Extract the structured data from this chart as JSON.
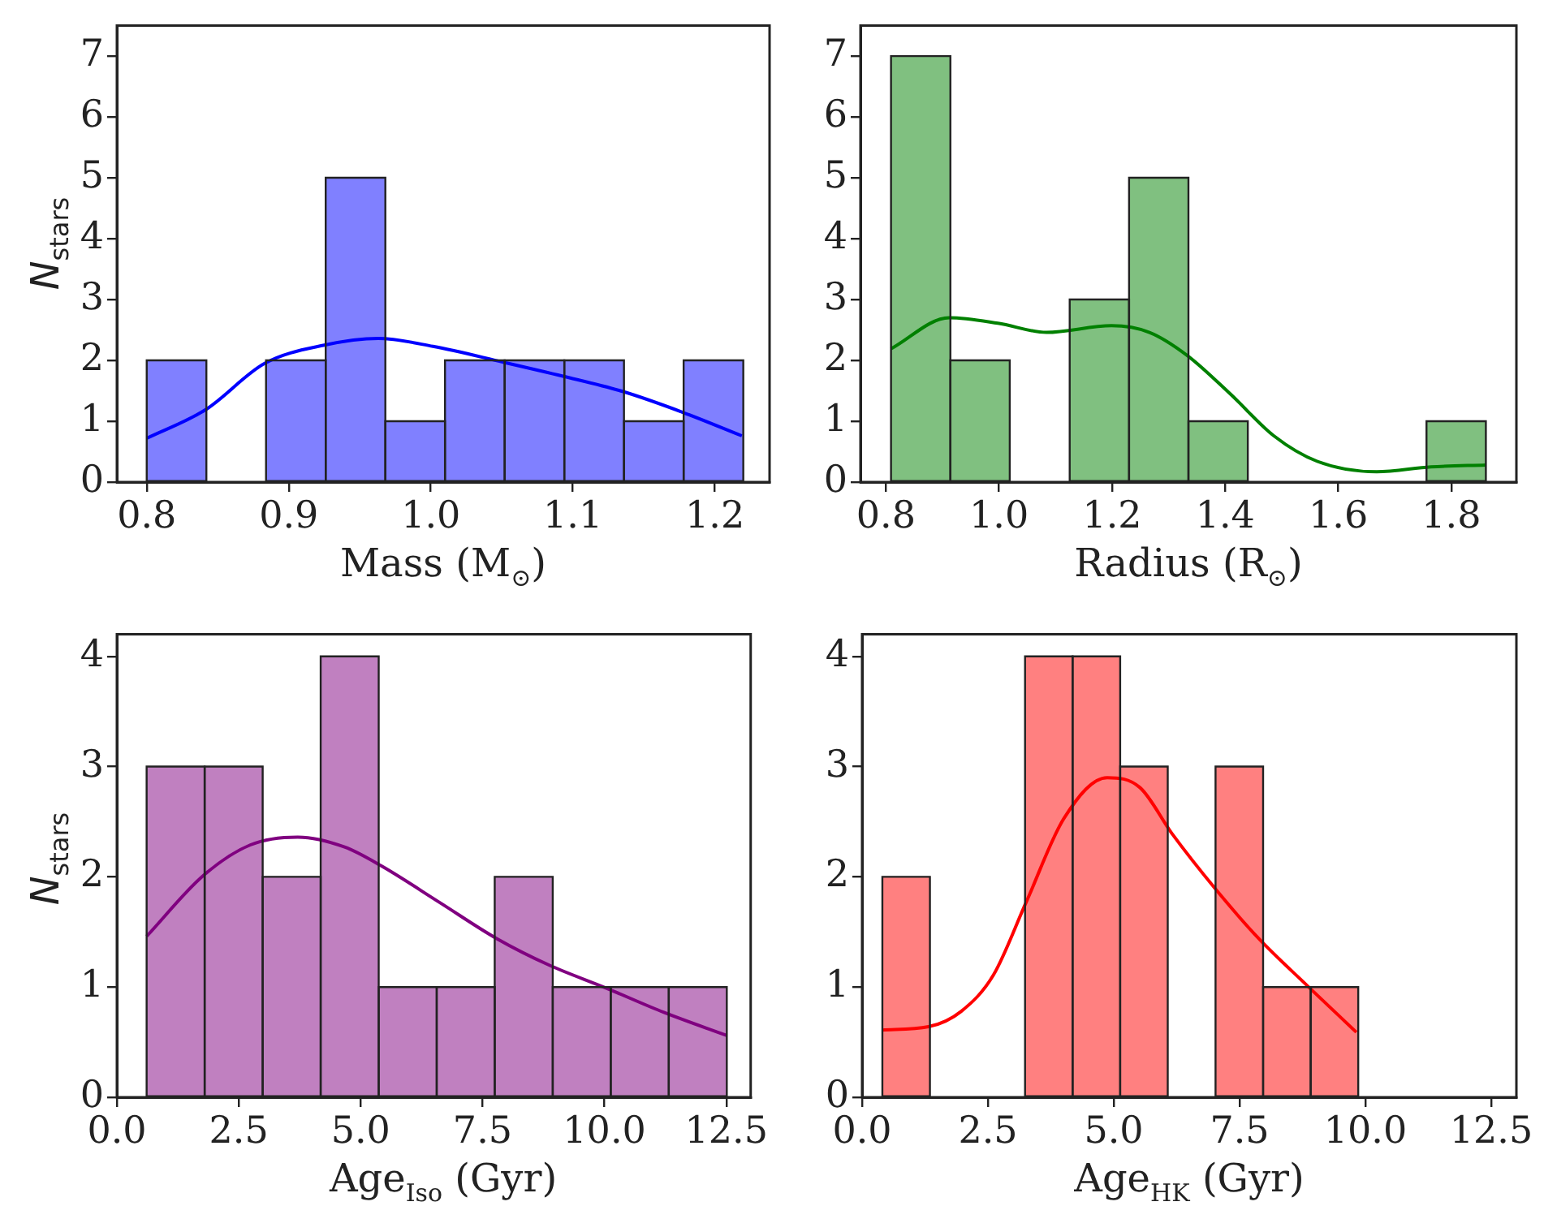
{
  "chart_data": [
    {
      "type": "histogram",
      "xlabel": "Mass (M$_{⊙}$)",
      "ylabel": "N$_{stars}$",
      "xlim": [
        0.779,
        1.2385
      ],
      "ylim": [
        0,
        7.5
      ],
      "xticks": [
        0.8,
        0.9,
        {
          "value": 1,
          "label": "1.0"
        },
        1.1,
        1.2
      ],
      "yticks": [
        0,
        1,
        2,
        3,
        4,
        5,
        6,
        7
      ],
      "grid": false,
      "legend": false,
      "series": [
        {
          "type": "histogram",
          "color": "#8080ff",
          "bins": [
            0.8,
            0.842,
            0.884,
            0.926,
            0.968,
            1.01,
            1.052,
            1.094,
            1.136,
            1.178,
            1.22
          ],
          "values": [
            2,
            0,
            2,
            5,
            1,
            2,
            2,
            2,
            1,
            2
          ]
        },
        {
          "type": "line",
          "color": "#0000ff",
          "x": [
            0.8,
            0.8415,
            0.883,
            0.925,
            0.963,
            1.0015,
            1.051,
            1.093,
            1.135,
            1.177,
            1.219
          ],
          "values": [
            0.72,
            1.19,
            1.95,
            2.25,
            2.36,
            2.23,
            1.97,
            1.74,
            1.49,
            1.15,
            0.76
          ]
        }
      ]
    },
    {
      "type": "histogram",
      "xlabel": "Radius (R$_{⊙}$)",
      "xlim": [
        0.755,
        1.915
      ],
      "ylim": [
        0,
        7.5
      ],
      "xticks": [
        0.8,
        {
          "value": 1,
          "label": "1.0"
        },
        1.2,
        1.4,
        1.6,
        1.8
      ],
      "yticks": [
        0,
        1,
        2,
        3,
        4,
        5,
        6,
        7
      ],
      "grid": false,
      "legend": false,
      "series": [
        {
          "type": "histogram",
          "color": "#80c080",
          "bins": [
            0.809,
            0.914,
            1.019,
            1.125,
            1.23,
            1.335,
            1.44,
            1.545,
            1.651,
            1.756,
            1.861
          ],
          "values": [
            7,
            2,
            0,
            3,
            5,
            1,
            0,
            0,
            0,
            1
          ]
        },
        {
          "type": "line",
          "color": "#008000",
          "x": [
            0.809,
            0.912,
            0.998,
            1.084,
            1.199,
            1.266,
            1.333,
            1.41,
            1.486,
            1.563,
            1.668,
            1.764,
            1.861
          ],
          "values": [
            2.19,
            2.7,
            2.61,
            2.46,
            2.57,
            2.46,
            2.08,
            1.44,
            0.76,
            0.34,
            0.17,
            0.25,
            0.28
          ]
        }
      ]
    },
    {
      "type": "histogram",
      "xlabel": "Age$_{Iso}$ (Gyr)",
      "ylabel": "N$_{stars}$",
      "xlim": [
        0,
        13
      ],
      "ylim": [
        0,
        4.2
      ],
      "xticks": [
        {
          "value": 0,
          "label": "0.0"
        },
        2.5,
        {
          "value": 5,
          "label": "5.0"
        },
        7.5,
        {
          "value": 10,
          "label": "10.0"
        },
        12.5
      ],
      "yticks": [
        0,
        1,
        2,
        3,
        4
      ],
      "grid": false,
      "legend": false,
      "series": [
        {
          "type": "histogram",
          "color": "#c080c0",
          "bins": [
            0.61,
            1.8,
            2.99,
            4.18,
            5.37,
            6.56,
            7.75,
            8.94,
            10.13,
            11.32,
            12.51
          ],
          "values": [
            3,
            3,
            2,
            4,
            1,
            1,
            2,
            1,
            1,
            1
          ]
        },
        {
          "type": "line",
          "color": "#800080",
          "x": [
            0.61,
            1.77,
            2.74,
            3.71,
            4.67,
            5.42,
            6.61,
            7.79,
            8.86,
            10.04,
            11.22,
            12.51
          ],
          "values": [
            1.46,
            2.01,
            2.29,
            2.36,
            2.27,
            2.1,
            1.77,
            1.44,
            1.2,
            0.99,
            0.77,
            0.56
          ]
        }
      ]
    },
    {
      "type": "histogram",
      "xlabel": "Age$_{HK}$ (Gyr)",
      "xlim": [
        0,
        13
      ],
      "ylim": [
        0,
        4.2
      ],
      "xticks": [
        {
          "value": 0,
          "label": "0.0"
        },
        2.5,
        {
          "value": 5,
          "label": "5.0"
        },
        7.5,
        {
          "value": 10,
          "label": "10.0"
        },
        12.5
      ],
      "yticks": [
        0,
        1,
        2,
        3,
        4
      ],
      "grid": false,
      "legend": false,
      "series": [
        {
          "type": "histogram",
          "color": "#ff8080",
          "bins": [
            0.4,
            1.35,
            2.29,
            3.24,
            4.18,
            5.13,
            6.07,
            7.02,
            7.97,
            8.91,
            9.86
          ],
          "values": [
            2,
            0,
            0,
            4,
            4,
            3,
            0,
            3,
            1,
            1
          ]
        },
        {
          "type": "line",
          "color": "#ff0000",
          "x": [
            0.4,
            1.32,
            1.97,
            2.61,
            3.26,
            4.01,
            4.87,
            5.52,
            6.16,
            7.02,
            7.88,
            8.85,
            9.82
          ],
          "values": [
            0.61,
            0.64,
            0.78,
            1.11,
            1.77,
            2.53,
            2.9,
            2.81,
            2.39,
            1.89,
            1.44,
            1.01,
            0.59
          ]
        }
      ]
    }
  ]
}
